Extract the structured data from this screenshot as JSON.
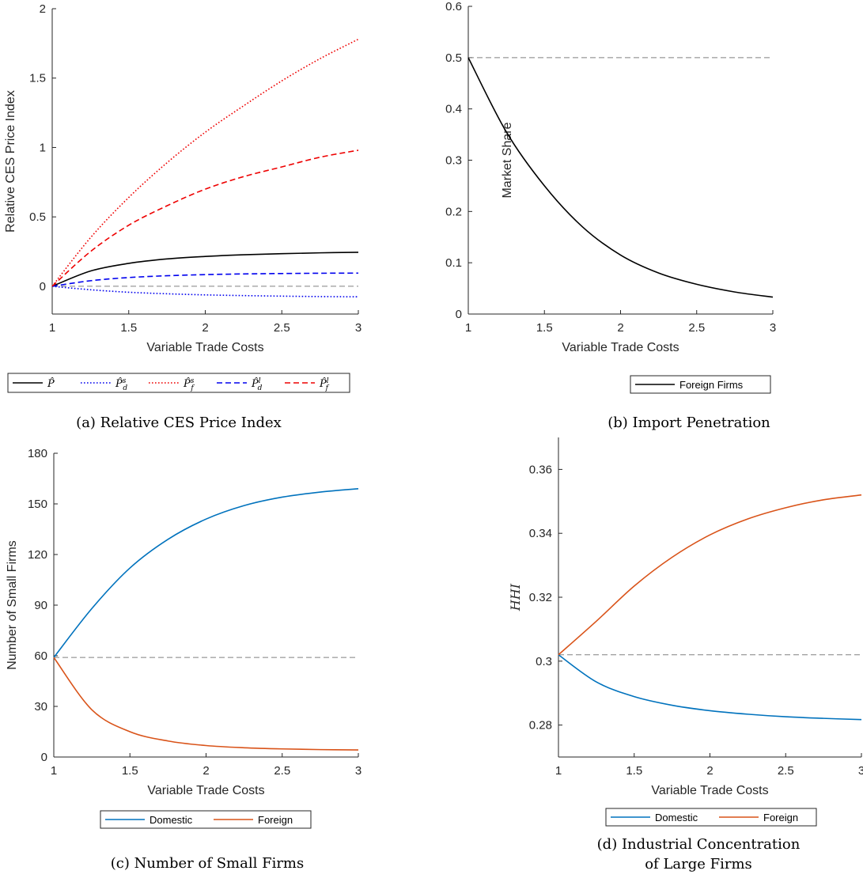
{
  "colors": {
    "black": "#000000",
    "blue": "#0000ee",
    "red": "#ee0000",
    "matlab_blue": "#0072bd",
    "matlab_orange": "#d95319",
    "reference_gray": "#808080"
  },
  "chart_data": [
    {
      "id": "a",
      "type": "line",
      "caption": "(a) Relative CES Price Index",
      "xlabel": "Variable Trade Costs",
      "ylabel": "Relative CES Price Index",
      "xlim": [
        1,
        3
      ],
      "ylim": [
        -0.2,
        2
      ],
      "xticks": [
        1,
        1.5,
        2,
        2.5,
        3
      ],
      "xtick_labels": [
        "1",
        "1.5",
        "2",
        "2.5",
        "3"
      ],
      "yticks": [
        0,
        0.5,
        1,
        1.5,
        2
      ],
      "ytick_labels": [
        "0",
        "0.5",
        "1",
        "1.5",
        "2"
      ],
      "reference_line": 0,
      "x": [
        1,
        1.25,
        1.5,
        1.75,
        2,
        2.25,
        2.5,
        2.75,
        3
      ],
      "series": [
        {
          "name": "P̂",
          "color": "#000000",
          "dash": "solid",
          "values": [
            0,
            0.11,
            0.165,
            0.197,
            0.215,
            0.227,
            0.235,
            0.241,
            0.245
          ]
        },
        {
          "name": "P̂ds",
          "color": "#0000ee",
          "dash": "dotted",
          "values": [
            0,
            -0.025,
            -0.043,
            -0.054,
            -0.062,
            -0.067,
            -0.071,
            -0.074,
            -0.076
          ]
        },
        {
          "name": "P̂fs",
          "color": "#ee0000",
          "dash": "dotted",
          "values": [
            0,
            0.35,
            0.64,
            0.89,
            1.11,
            1.3,
            1.48,
            1.64,
            1.78
          ]
        },
        {
          "name": "P̂dl",
          "color": "#0000ee",
          "dash": "dashed",
          "values": [
            0,
            0.04,
            0.063,
            0.076,
            0.084,
            0.089,
            0.092,
            0.094,
            0.095
          ]
        },
        {
          "name": "P̂fl",
          "color": "#ee0000",
          "dash": "dashed",
          "values": [
            0,
            0.25,
            0.44,
            0.58,
            0.7,
            0.79,
            0.86,
            0.93,
            0.98
          ]
        }
      ],
      "legend": [
        {
          "base": "P̂",
          "sub": "",
          "sup": ""
        },
        {
          "base": "P̂",
          "sub": "d",
          "sup": "s"
        },
        {
          "base": "P̂",
          "sub": "f",
          "sup": "s"
        },
        {
          "base": "P̂",
          "sub": "d",
          "sup": "l"
        },
        {
          "base": "P̂",
          "sub": "f",
          "sup": "l"
        }
      ]
    },
    {
      "id": "b",
      "type": "line",
      "caption": "(b) Import Penetration",
      "xlabel": "Variable Trade Costs",
      "ylabel": "Market Share",
      "xlim": [
        1,
        3
      ],
      "ylim": [
        0,
        0.6
      ],
      "xticks": [
        1,
        1.5,
        2,
        2.5,
        3
      ],
      "xtick_labels": [
        "1",
        "1.5",
        "2",
        "2.5",
        "3"
      ],
      "yticks": [
        0,
        0.1,
        0.2,
        0.3,
        0.4,
        0.5,
        0.6
      ],
      "ytick_labels": [
        "0",
        "0.1",
        "0.2",
        "0.3",
        "0.4",
        "0.5",
        "0.6"
      ],
      "reference_line": 0.5,
      "x": [
        1,
        1.25,
        1.5,
        1.75,
        2,
        2.25,
        2.5,
        2.75,
        3
      ],
      "series": [
        {
          "name": "Foreign Firms",
          "color": "#000000",
          "dash": "solid",
          "values": [
            0.5,
            0.355,
            0.25,
            0.17,
            0.115,
            0.08,
            0.058,
            0.043,
            0.033
          ]
        }
      ],
      "legend": [
        {
          "label": "Foreign Firms"
        }
      ]
    },
    {
      "id": "c",
      "type": "line",
      "caption": "(c) Number of Small Firms",
      "xlabel": "Variable Trade Costs",
      "ylabel": "Number of Small Firms",
      "xlim": [
        1,
        3
      ],
      "ylim": [
        0,
        180
      ],
      "xticks": [
        1,
        1.5,
        2,
        2.5,
        3
      ],
      "xtick_labels": [
        "1",
        "1.5",
        "2",
        "2.5",
        "3"
      ],
      "yticks": [
        0,
        30,
        60,
        90,
        120,
        150,
        180
      ],
      "ytick_labels": [
        "0",
        "30",
        "60",
        "90",
        "120",
        "150",
        "180"
      ],
      "reference_line": 59,
      "x": [
        1,
        1.25,
        1.5,
        1.75,
        2,
        2.25,
        2.5,
        2.75,
        3
      ],
      "series": [
        {
          "name": "Domestic",
          "color": "#0072bd",
          "dash": "solid",
          "values": [
            59,
            88,
            112,
            129,
            141,
            149,
            154,
            157,
            159
          ]
        },
        {
          "name": "Foreign",
          "color": "#d95319",
          "dash": "solid",
          "values": [
            59,
            28,
            15,
            9.5,
            6.8,
            5.5,
            4.8,
            4.4,
            4.2
          ]
        }
      ],
      "legend": [
        {
          "label": "Domestic"
        },
        {
          "label": "Foreign"
        }
      ]
    },
    {
      "id": "d",
      "type": "line",
      "caption": "(d) Industrial Concentration",
      "caption_line2": "of Large Firms",
      "xlabel": "Variable Trade Costs",
      "ylabel": "HHI",
      "xlim": [
        1,
        3
      ],
      "ylim": [
        0.27,
        0.37
      ],
      "xticks": [
        1,
        1.5,
        2,
        2.5,
        3
      ],
      "xtick_labels": [
        "1",
        "1.5",
        "2",
        "2.5",
        "3"
      ],
      "yticks": [
        0.28,
        0.3,
        0.32,
        0.34,
        0.36
      ],
      "ytick_labels": [
        "0.28",
        "0.3",
        "0.32",
        "0.34",
        "0.36"
      ],
      "reference_line": 0.302,
      "x": [
        1,
        1.25,
        1.5,
        1.75,
        2,
        2.25,
        2.5,
        2.75,
        3
      ],
      "series": [
        {
          "name": "Domestic",
          "color": "#0072bd",
          "dash": "solid",
          "values": [
            0.302,
            0.2935,
            0.2889,
            0.2862,
            0.2845,
            0.2834,
            0.2826,
            0.2821,
            0.2817
          ]
        },
        {
          "name": "Foreign",
          "color": "#d95319",
          "dash": "solid",
          "values": [
            0.302,
            0.3125,
            0.3235,
            0.3325,
            0.3395,
            0.3445,
            0.348,
            0.3505,
            0.352
          ]
        }
      ],
      "legend": [
        {
          "label": "Domestic"
        },
        {
          "label": "Foreign"
        }
      ]
    }
  ]
}
